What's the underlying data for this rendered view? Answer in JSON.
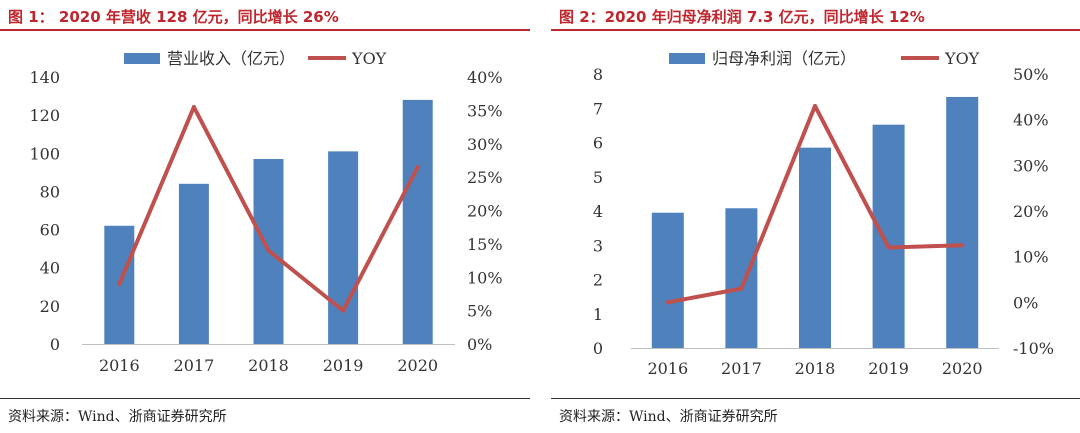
{
  "charts": [
    {
      "figure_title": "图 1： 2020 年营收 128 亿元，同比增长 26%",
      "source": "资料来源：Wind、浙商证券研究所"
    },
    {
      "figure_title": "图 2：2020 年归母净利润 7.3 亿元，同比增长 12%",
      "source": "资料来源：Wind、浙商证券研究所"
    }
  ],
  "colors": {
    "bar": "#4f81bd",
    "line": "#c0504d",
    "title": "#c0262d",
    "axis_text": "#333333"
  },
  "chart_data": [
    {
      "type": "bar",
      "title": "2020 年营收 128 亿元，同比增长 26%",
      "categories": [
        "2016",
        "2017",
        "2018",
        "2019",
        "2020"
      ],
      "series": [
        {
          "name": "营业收入（亿元）",
          "type": "bar",
          "axis": "left",
          "values": [
            62,
            84,
            97,
            101,
            128
          ]
        },
        {
          "name": "YOY",
          "type": "line",
          "axis": "right",
          "values": [
            9,
            35.5,
            14,
            5,
            26.5
          ]
        }
      ],
      "ylim": [
        0,
        140
      ],
      "yticks": [
        0,
        20,
        40,
        60,
        80,
        100,
        120,
        140
      ],
      "y2lim": [
        0,
        40
      ],
      "y2ticks": [
        "0%",
        "5%",
        "10%",
        "15%",
        "20%",
        "25%",
        "30%",
        "35%",
        "40%"
      ],
      "legend": "top-center"
    },
    {
      "type": "bar",
      "title": "2020 年归母净利润 7.3 亿元，同比增长 12%",
      "categories": [
        "2016",
        "2017",
        "2018",
        "2019",
        "2020"
      ],
      "series": [
        {
          "name": "归母净利润（亿元）",
          "type": "bar",
          "axis": "left",
          "values": [
            3.95,
            4.08,
            5.85,
            6.52,
            7.33
          ]
        },
        {
          "name": "YOY",
          "type": "line",
          "axis": "right",
          "values": [
            0,
            3,
            43,
            12,
            12.5
          ]
        }
      ],
      "ylim": [
        0,
        8
      ],
      "yticks": [
        0,
        1,
        2,
        3,
        4,
        5,
        6,
        7,
        8
      ],
      "y2lim": [
        -10,
        50
      ],
      "y2ticks": [
        "-10%",
        "0%",
        "10%",
        "20%",
        "30%",
        "40%",
        "50%"
      ],
      "legend": "top-center"
    }
  ]
}
